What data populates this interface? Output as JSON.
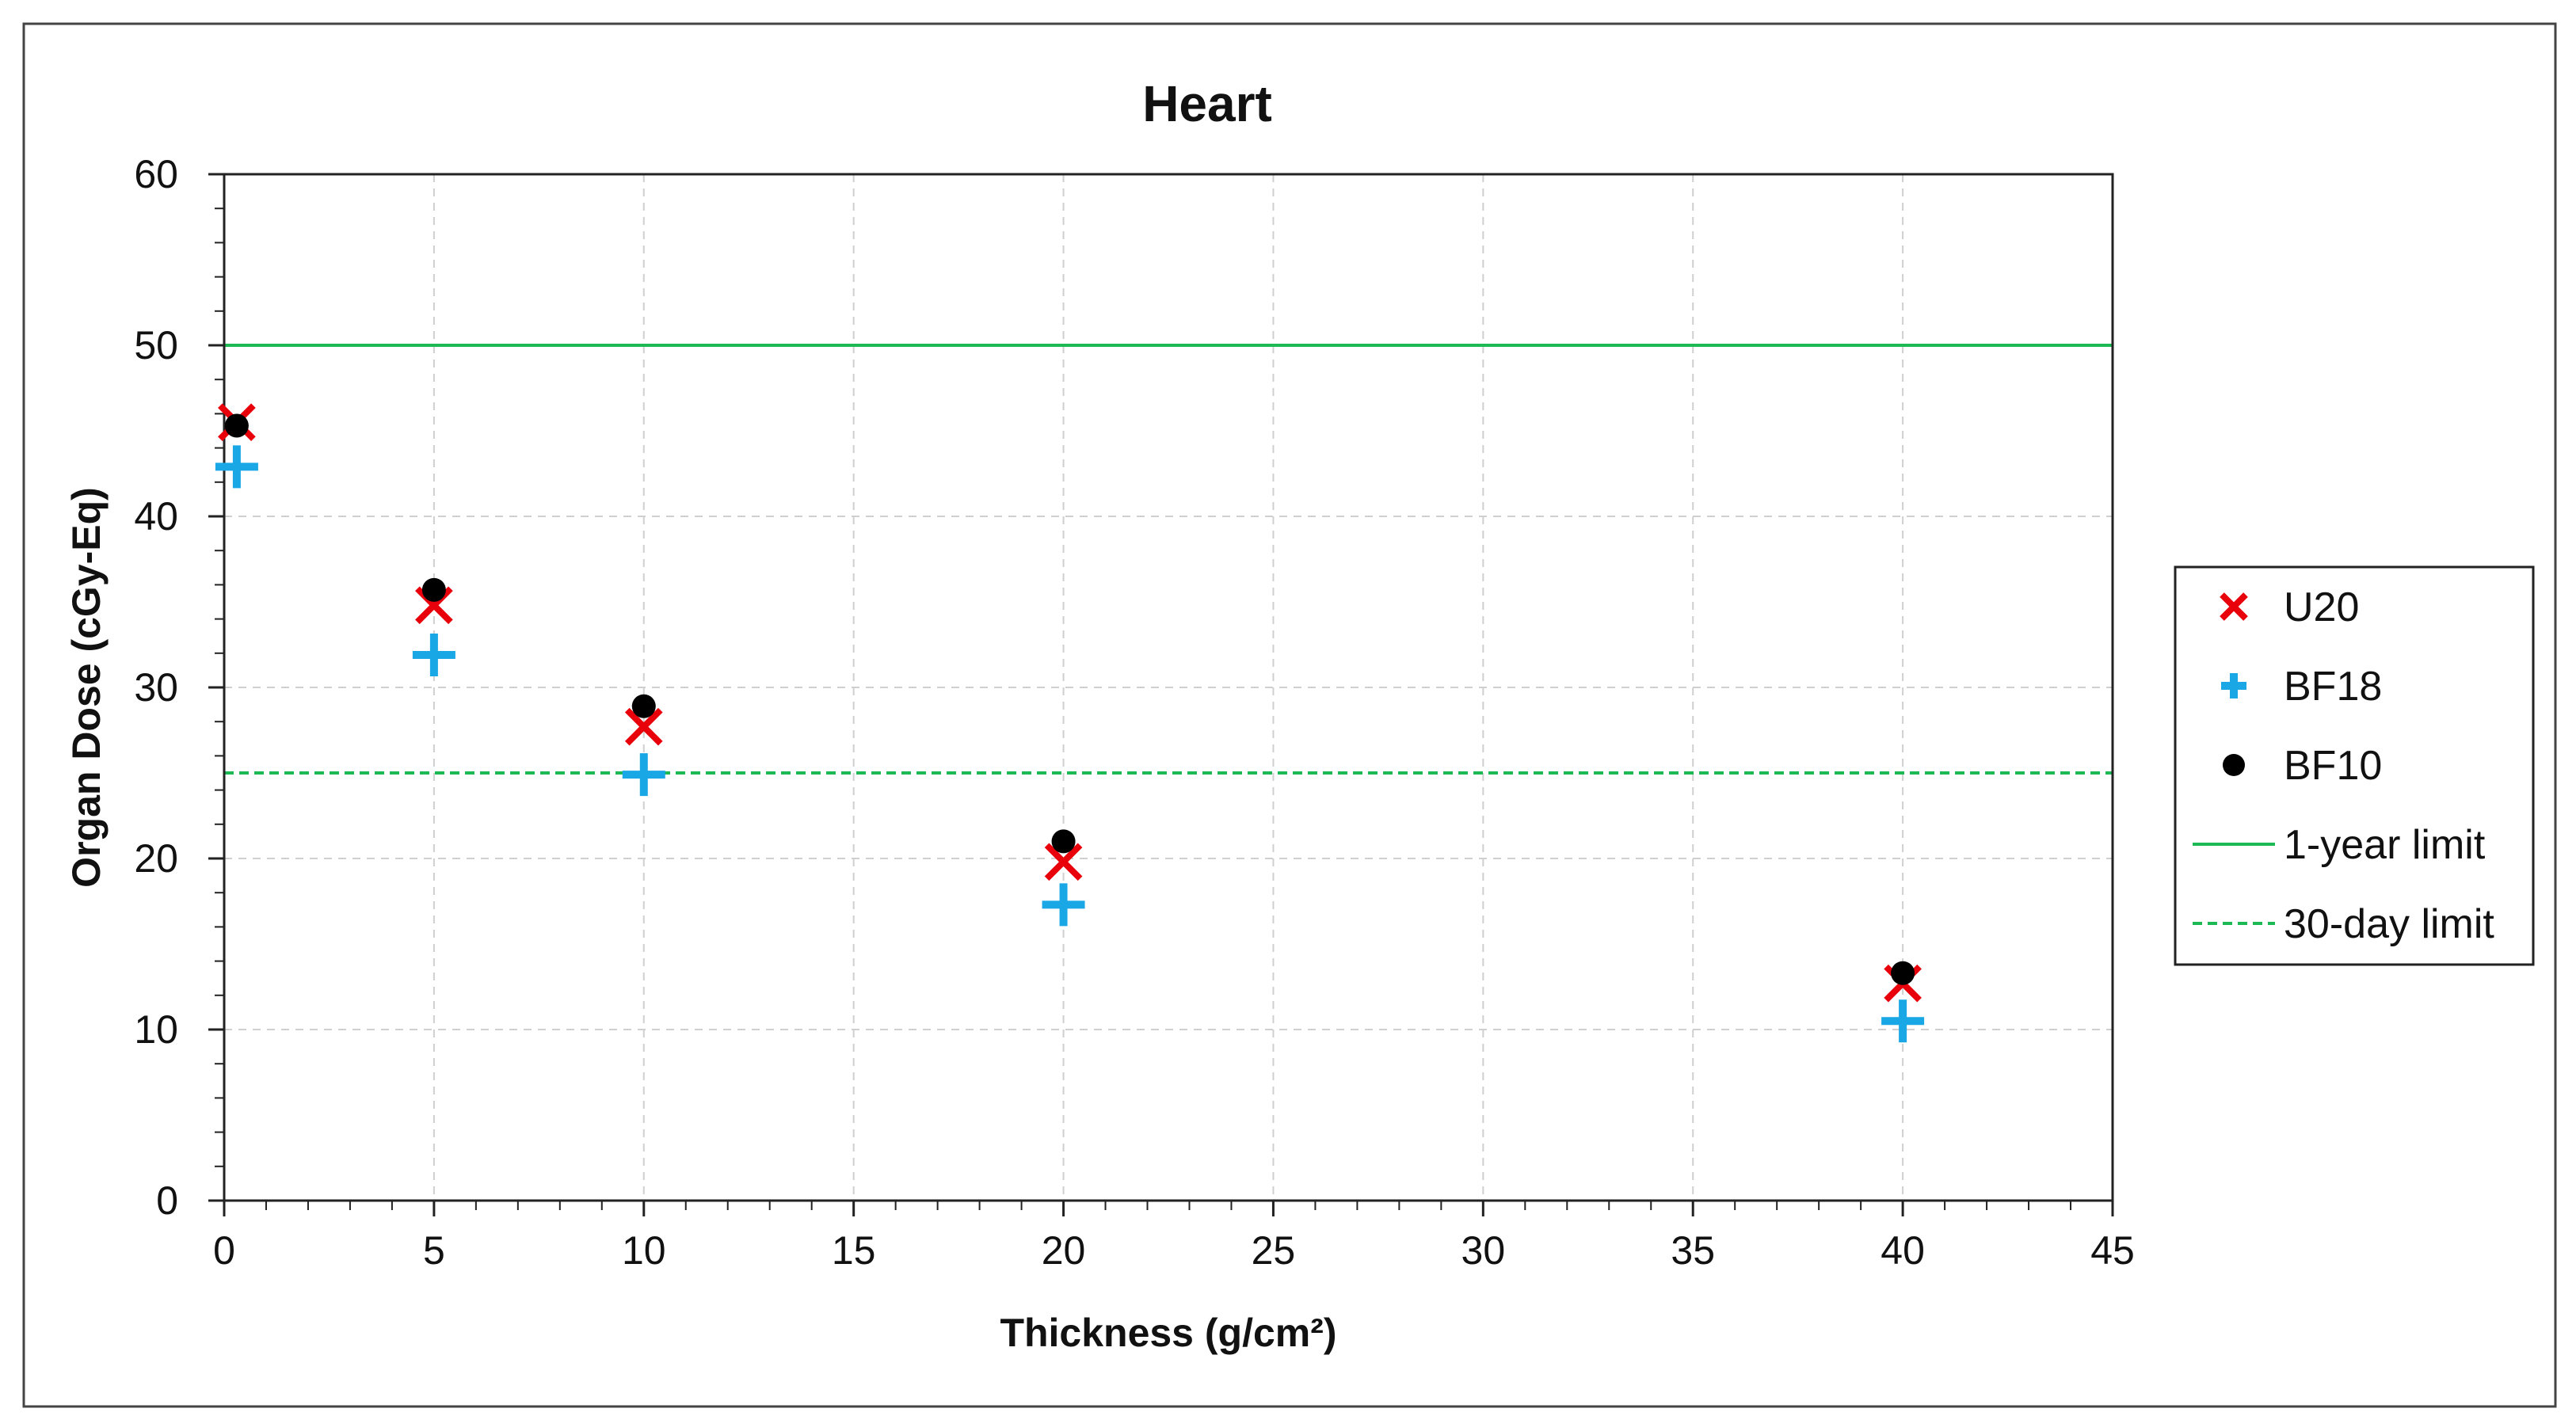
{
  "chart_data": {
    "type": "scatter",
    "title": "Heart",
    "xlabel": "Thickness (g/cm²)",
    "ylabel": "Organ Dose (cGy-Eq)",
    "xlim": [
      0,
      45
    ],
    "ylim": [
      0,
      60
    ],
    "xticks": [
      0,
      5,
      10,
      15,
      20,
      25,
      30,
      35,
      40,
      45
    ],
    "yticks": [
      0,
      10,
      20,
      30,
      40,
      50,
      60
    ],
    "grid": true,
    "legend_position": "right",
    "series": [
      {
        "name": "U20",
        "marker": "x",
        "color": "#e8000b",
        "x": [
          0.3,
          5,
          10,
          20,
          40
        ],
        "y": [
          45.5,
          34.8,
          27.7,
          19.8,
          12.7
        ]
      },
      {
        "name": "BF18",
        "marker": "plus",
        "color": "#1aa7e6",
        "x": [
          0.3,
          5,
          10,
          20,
          40
        ],
        "y": [
          42.9,
          31.9,
          24.9,
          17.3,
          10.5
        ]
      },
      {
        "name": "BF10",
        "marker": "circle",
        "color": "#000000",
        "x": [
          0.3,
          5,
          10,
          20,
          40
        ],
        "y": [
          45.3,
          35.7,
          28.9,
          21.0,
          13.3
        ]
      }
    ],
    "reference_lines": [
      {
        "name": "1-year limit",
        "y": 50,
        "style": "solid",
        "color": "#1db954"
      },
      {
        "name": "30-day limit",
        "y": 25,
        "style": "dashed",
        "color": "#1db954"
      }
    ]
  }
}
